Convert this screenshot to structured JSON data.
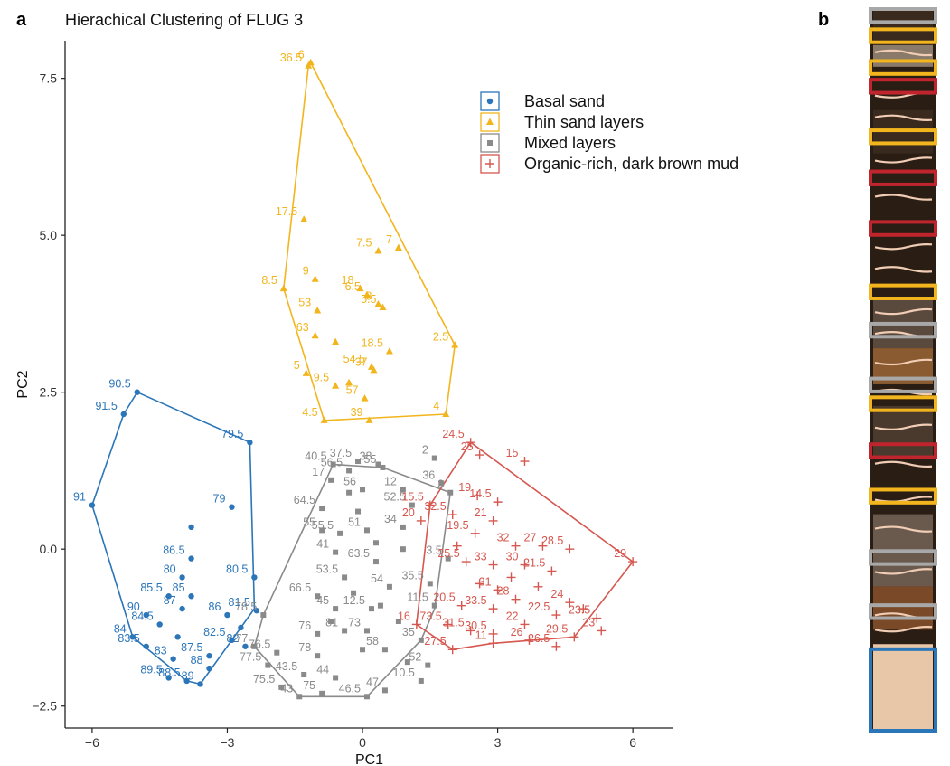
{
  "panel_a_letter": "a",
  "panel_b_letter": "b",
  "chart_data": {
    "type": "scatter",
    "title": "Hierachical Clustering of FLUG 3",
    "xlabel": "PC1",
    "ylabel": "PC2",
    "xlim": [
      -6.6,
      6.9
    ],
    "ylim": [
      -2.85,
      8.1
    ],
    "x_ticks": [
      -6,
      -3,
      0,
      3,
      6
    ],
    "y_ticks": [
      -2.5,
      0.0,
      2.5,
      5.0,
      7.5
    ],
    "x_tick_labels": [
      "−6",
      "−3",
      "0",
      "3",
      "6"
    ],
    "y_tick_labels": [
      "−2.5",
      "0.0",
      "2.5",
      "5.0",
      "7.5"
    ],
    "grid": false,
    "legend_position": "top-right",
    "series": [
      {
        "name": "Basal sand",
        "color": "#2b75b9",
        "marker": "circle",
        "points": [
          {
            "x": -5.0,
            "y": 2.5,
            "label": "90.5"
          },
          {
            "x": -5.3,
            "y": 2.15,
            "label": "91.5"
          },
          {
            "x": -6.0,
            "y": 0.7,
            "label": "91"
          },
          {
            "x": -2.5,
            "y": 1.7,
            "label": "79.5"
          },
          {
            "x": -2.9,
            "y": 0.67,
            "label": "79"
          },
          {
            "x": -3.8,
            "y": 0.35,
            "label": ""
          },
          {
            "x": -3.8,
            "y": -0.15,
            "label": "86.5"
          },
          {
            "x": -4.0,
            "y": -0.45,
            "label": "80"
          },
          {
            "x": -2.4,
            "y": -0.45,
            "label": "80.5"
          },
          {
            "x": -4.3,
            "y": -0.75,
            "label": "85.5"
          },
          {
            "x": -3.8,
            "y": -0.75,
            "label": "85"
          },
          {
            "x": -4.0,
            "y": -0.95,
            "label": "87"
          },
          {
            "x": -4.8,
            "y": -1.05,
            "label": "90"
          },
          {
            "x": -5.1,
            "y": -1.4,
            "label": "84"
          },
          {
            "x": -4.5,
            "y": -1.2,
            "label": "84.5"
          },
          {
            "x": -4.1,
            "y": -1.4,
            "label": ""
          },
          {
            "x": -4.8,
            "y": -1.55,
            "label": "83.5"
          },
          {
            "x": -3.0,
            "y": -1.05,
            "label": "86"
          },
          {
            "x": -2.7,
            "y": -1.25,
            "label": ""
          },
          {
            "x": -2.35,
            "y": -0.98,
            "label": "81.5"
          },
          {
            "x": -2.9,
            "y": -1.45,
            "label": "82.5"
          },
          {
            "x": -2.6,
            "y": -1.55,
            "label": "82"
          },
          {
            "x": -4.2,
            "y": -1.75,
            "label": "83"
          },
          {
            "x": -3.4,
            "y": -1.7,
            "label": "87.5"
          },
          {
            "x": -4.3,
            "y": -2.05,
            "label": "89.5"
          },
          {
            "x": -3.9,
            "y": -2.1,
            "label": "88.5"
          },
          {
            "x": -3.6,
            "y": -2.15,
            "label": "89"
          },
          {
            "x": -3.4,
            "y": -1.9,
            "label": "88"
          }
        ]
      },
      {
        "name": "Thin sand layers",
        "color": "#f2b51d",
        "marker": "triangle",
        "points": [
          {
            "x": -1.15,
            "y": 7.75,
            "label": "6"
          },
          {
            "x": -1.2,
            "y": 7.7,
            "label": "36.5"
          },
          {
            "x": -1.3,
            "y": 5.25,
            "label": "17.5"
          },
          {
            "x": 0.8,
            "y": 4.8,
            "label": "7"
          },
          {
            "x": 0.35,
            "y": 4.75,
            "label": "7.5"
          },
          {
            "x": -1.05,
            "y": 4.3,
            "label": "9"
          },
          {
            "x": -1.75,
            "y": 4.15,
            "label": "8.5"
          },
          {
            "x": -0.05,
            "y": 4.15,
            "label": "18"
          },
          {
            "x": 0.1,
            "y": 4.05,
            "label": "6.5"
          },
          {
            "x": 0.35,
            "y": 3.9,
            "label": "8"
          },
          {
            "x": 0.45,
            "y": 3.85,
            "label": "5.5"
          },
          {
            "x": -1.0,
            "y": 3.8,
            "label": "53"
          },
          {
            "x": -1.05,
            "y": 3.4,
            "label": "63"
          },
          {
            "x": 0.6,
            "y": 3.15,
            "label": "18.5"
          },
          {
            "x": 2.05,
            "y": 3.25,
            "label": "2.5"
          },
          {
            "x": -1.25,
            "y": 2.8,
            "label": "5"
          },
          {
            "x": -0.6,
            "y": 2.6,
            "label": "9.5"
          },
          {
            "x": 0.2,
            "y": 2.9,
            "label": "54.5"
          },
          {
            "x": 0.25,
            "y": 2.85,
            "label": "37"
          },
          {
            "x": 0.05,
            "y": 2.4,
            "label": "57"
          },
          {
            "x": -0.85,
            "y": 2.05,
            "label": "4.5"
          },
          {
            "x": 0.15,
            "y": 2.05,
            "label": "39"
          },
          {
            "x": 1.85,
            "y": 2.15,
            "label": "4"
          },
          {
            "x": -0.3,
            "y": 2.65,
            "label": ""
          },
          {
            "x": -0.6,
            "y": 3.3,
            "label": ""
          }
        ]
      },
      {
        "name": "Mixed layers",
        "color": "#8a8a8a",
        "marker": "square",
        "points": [
          {
            "x": -0.1,
            "y": 1.4,
            "label": "37.5"
          },
          {
            "x": 0.35,
            "y": 1.35,
            "label": "38"
          },
          {
            "x": 1.6,
            "y": 1.45,
            "label": "2"
          },
          {
            "x": -0.65,
            "y": 1.35,
            "label": "40.5"
          },
          {
            "x": -0.3,
            "y": 1.25,
            "label": "56.5"
          },
          {
            "x": 0.45,
            "y": 1.3,
            "label": "55"
          },
          {
            "x": 1.75,
            "y": 1.05,
            "label": "36"
          },
          {
            "x": -0.7,
            "y": 1.1,
            "label": "17"
          },
          {
            "x": 0.0,
            "y": 0.95,
            "label": "56"
          },
          {
            "x": 0.9,
            "y": 0.95,
            "label": "12"
          },
          {
            "x": 1.95,
            "y": 0.9,
            "label": "3"
          },
          {
            "x": -0.9,
            "y": 0.65,
            "label": "64.5"
          },
          {
            "x": 1.1,
            "y": 0.7,
            "label": "52.5"
          },
          {
            "x": 0.9,
            "y": 0.35,
            "label": "34"
          },
          {
            "x": -0.9,
            "y": 0.3,
            "label": "55"
          },
          {
            "x": -0.5,
            "y": 0.25,
            "label": "55.5"
          },
          {
            "x": 0.1,
            "y": 0.3,
            "label": "51"
          },
          {
            "x": -0.6,
            "y": -0.05,
            "label": "41"
          },
          {
            "x": 0.3,
            "y": -0.2,
            "label": "63.5"
          },
          {
            "x": 1.9,
            "y": -0.15,
            "label": "3.5"
          },
          {
            "x": -0.4,
            "y": -0.45,
            "label": "53.5"
          },
          {
            "x": -1.0,
            "y": -0.75,
            "label": "66.5"
          },
          {
            "x": 0.6,
            "y": -0.6,
            "label": "54"
          },
          {
            "x": 1.5,
            "y": -0.55,
            "label": "35.5"
          },
          {
            "x": -0.6,
            "y": -0.95,
            "label": "45"
          },
          {
            "x": 0.2,
            "y": -0.95,
            "label": "12.5"
          },
          {
            "x": 1.6,
            "y": -0.9,
            "label": "11.5"
          },
          {
            "x": -2.2,
            "y": -1.05,
            "label": "78.5"
          },
          {
            "x": 0.8,
            "y": -1.15,
            "label": ""
          },
          {
            "x": -1.0,
            "y": -1.35,
            "label": "76"
          },
          {
            "x": -0.4,
            "y": -1.3,
            "label": "81"
          },
          {
            "x": 0.1,
            "y": -1.3,
            "label": "73"
          },
          {
            "x": 1.3,
            "y": -1.45,
            "label": "35"
          },
          {
            "x": -2.4,
            "y": -1.55,
            "label": "77"
          },
          {
            "x": -1.9,
            "y": -1.65,
            "label": "76.5"
          },
          {
            "x": -1.0,
            "y": -1.7,
            "label": "78"
          },
          {
            "x": 0.5,
            "y": -1.6,
            "label": "58"
          },
          {
            "x": -2.1,
            "y": -1.85,
            "label": "77.5"
          },
          {
            "x": -1.3,
            "y": -2.0,
            "label": "43.5"
          },
          {
            "x": -1.8,
            "y": -2.2,
            "label": "75.5"
          },
          {
            "x": -0.6,
            "y": -2.05,
            "label": "44"
          },
          {
            "x": 1.45,
            "y": -1.85,
            "label": "52"
          },
          {
            "x": -1.4,
            "y": -2.35,
            "label": "43"
          },
          {
            "x": -0.9,
            "y": -2.3,
            "label": "75"
          },
          {
            "x": 0.5,
            "y": -2.25,
            "label": "47"
          },
          {
            "x": 0.1,
            "y": -2.35,
            "label": "46.5"
          },
          {
            "x": 1.3,
            "y": -2.1,
            "label": "10.5"
          },
          {
            "x": -0.1,
            "y": 0.6,
            "label": ""
          },
          {
            "x": 0.3,
            "y": 0.1,
            "label": ""
          },
          {
            "x": -0.2,
            "y": -0.7,
            "label": ""
          },
          {
            "x": 0.4,
            "y": -0.9,
            "label": ""
          },
          {
            "x": -0.7,
            "y": -1.15,
            "label": ""
          },
          {
            "x": 0.0,
            "y": -1.6,
            "label": ""
          },
          {
            "x": 0.9,
            "y": 0.0,
            "label": ""
          },
          {
            "x": -0.3,
            "y": 0.9,
            "label": ""
          },
          {
            "x": 1.0,
            "y": -1.8,
            "label": ""
          }
        ]
      },
      {
        "name": "Organic-rich, dark brown mud",
        "color": "#d6574f",
        "marker": "plus",
        "points": [
          {
            "x": 2.4,
            "y": 1.7,
            "label": "24.5"
          },
          {
            "x": 2.6,
            "y": 1.5,
            "label": "25"
          },
          {
            "x": 3.6,
            "y": 1.4,
            "label": "15"
          },
          {
            "x": 2.55,
            "y": 0.85,
            "label": "19"
          },
          {
            "x": 3.0,
            "y": 0.75,
            "label": "14.5"
          },
          {
            "x": 1.5,
            "y": 0.7,
            "label": "15.5"
          },
          {
            "x": 2.0,
            "y": 0.55,
            "label": "32.5"
          },
          {
            "x": 2.9,
            "y": 0.45,
            "label": "21"
          },
          {
            "x": 2.5,
            "y": 0.25,
            "label": "19.5"
          },
          {
            "x": 1.3,
            "y": 0.45,
            "label": "20"
          },
          {
            "x": 3.4,
            "y": 0.05,
            "label": "32"
          },
          {
            "x": 4.0,
            "y": 0.05,
            "label": "27"
          },
          {
            "x": 4.6,
            "y": 0.0,
            "label": "28.5"
          },
          {
            "x": 2.3,
            "y": -0.2,
            "label": "25.5"
          },
          {
            "x": 2.9,
            "y": -0.25,
            "label": "33"
          },
          {
            "x": 3.6,
            "y": -0.25,
            "label": "30"
          },
          {
            "x": 4.2,
            "y": -0.35,
            "label": "21.5"
          },
          {
            "x": 6.0,
            "y": -0.2,
            "label": "29"
          },
          {
            "x": 3.0,
            "y": -0.65,
            "label": "31"
          },
          {
            "x": 3.4,
            "y": -0.8,
            "label": "28"
          },
          {
            "x": 4.6,
            "y": -0.85,
            "label": "24"
          },
          {
            "x": 2.2,
            "y": -0.9,
            "label": "20.5"
          },
          {
            "x": 2.9,
            "y": -0.95,
            "label": "33.5"
          },
          {
            "x": 4.3,
            "y": -1.05,
            "label": "22.5"
          },
          {
            "x": 1.2,
            "y": -1.2,
            "label": "16"
          },
          {
            "x": 1.9,
            "y": -1.2,
            "label": "73.5"
          },
          {
            "x": 3.6,
            "y": -1.2,
            "label": "22"
          },
          {
            "x": 5.2,
            "y": -1.1,
            "label": "23.5"
          },
          {
            "x": 2.4,
            "y": -1.3,
            "label": "31.5"
          },
          {
            "x": 2.9,
            "y": -1.35,
            "label": "30.5"
          },
          {
            "x": 3.7,
            "y": -1.45,
            "label": "26"
          },
          {
            "x": 4.7,
            "y": -1.4,
            "label": "29.5"
          },
          {
            "x": 5.3,
            "y": -1.3,
            "label": "23"
          },
          {
            "x": 2.0,
            "y": -1.6,
            "label": "27.5"
          },
          {
            "x": 2.9,
            "y": -1.5,
            "label": "11"
          },
          {
            "x": 4.3,
            "y": -1.55,
            "label": "26.5"
          },
          {
            "x": 2.1,
            "y": 0.05,
            "label": ""
          },
          {
            "x": 3.3,
            "y": -0.45,
            "label": ""
          },
          {
            "x": 3.9,
            "y": -0.6,
            "label": ""
          },
          {
            "x": 2.6,
            "y": -0.55,
            "label": ""
          },
          {
            "x": 4.9,
            "y": -0.95,
            "label": ""
          }
        ]
      }
    ],
    "hulls": [
      {
        "series": "Basal sand",
        "points": [
          [
            -5.0,
            2.5
          ],
          [
            -2.5,
            1.7
          ],
          [
            -2.4,
            -0.95
          ],
          [
            -3.6,
            -2.15
          ],
          [
            -3.9,
            -2.1
          ],
          [
            -5.1,
            -1.4
          ],
          [
            -6.0,
            0.7
          ],
          [
            -5.3,
            2.15
          ]
        ]
      },
      {
        "series": "Thin sand layers",
        "points": [
          [
            -1.15,
            7.75
          ],
          [
            2.05,
            3.25
          ],
          [
            1.85,
            2.15
          ],
          [
            -0.85,
            2.05
          ],
          [
            -1.75,
            4.15
          ],
          [
            -1.2,
            7.7
          ]
        ]
      },
      {
        "series": "Mixed layers",
        "points": [
          [
            -0.65,
            1.35
          ],
          [
            0.45,
            1.3
          ],
          [
            1.95,
            0.9
          ],
          [
            1.6,
            -0.95
          ],
          [
            1.3,
            -1.45
          ],
          [
            0.1,
            -2.35
          ],
          [
            -1.4,
            -2.35
          ],
          [
            -2.4,
            -1.55
          ],
          [
            -2.2,
            -1.05
          ],
          [
            -0.65,
            1.35
          ]
        ]
      },
      {
        "series": "Organic-rich, dark brown mud",
        "points": [
          [
            2.4,
            1.7
          ],
          [
            6.0,
            -0.2
          ],
          [
            4.7,
            -1.4
          ],
          [
            2.9,
            -1.5
          ],
          [
            2.0,
            -1.6
          ],
          [
            1.2,
            -1.2
          ],
          [
            1.5,
            0.7
          ],
          [
            2.4,
            1.7
          ]
        ]
      }
    ]
  },
  "core_column": {
    "boxes": [
      {
        "color": "#a8a8a8",
        "top": 0.0,
        "height": 0.018
      },
      {
        "color": "#f2b51d",
        "top": 0.028,
        "height": 0.018
      },
      {
        "color": "#f2b51d",
        "top": 0.072,
        "height": 0.018
      },
      {
        "color": "#c0252e",
        "top": 0.098,
        "height": 0.018
      },
      {
        "color": "#f2b51d",
        "top": 0.168,
        "height": 0.018
      },
      {
        "color": "#c0252e",
        "top": 0.225,
        "height": 0.018
      },
      {
        "color": "#c0252e",
        "top": 0.295,
        "height": 0.018
      },
      {
        "color": "#f2b51d",
        "top": 0.383,
        "height": 0.018
      },
      {
        "color": "#a8a8a8",
        "top": 0.436,
        "height": 0.018
      },
      {
        "color": "#a8a8a8",
        "top": 0.512,
        "height": 0.018
      },
      {
        "color": "#f2b51d",
        "top": 0.538,
        "height": 0.018
      },
      {
        "color": "#c0252e",
        "top": 0.603,
        "height": 0.018
      },
      {
        "color": "#f2b51d",
        "top": 0.666,
        "height": 0.018
      },
      {
        "color": "#a8a8a8",
        "top": 0.751,
        "height": 0.018
      },
      {
        "color": "#a8a8a8",
        "top": 0.826,
        "height": 0.018
      },
      {
        "color": "#2b75b9",
        "top": 0.887,
        "height": 0.113
      }
    ]
  }
}
